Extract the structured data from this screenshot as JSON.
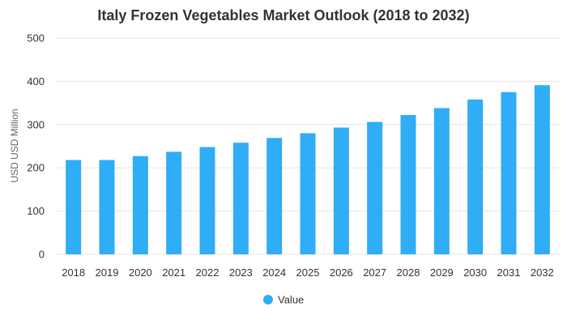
{
  "chart_data": {
    "type": "bar",
    "title": "Italy Frozen Vegetables Market Outlook (2018 to 2032)",
    "xlabel": "",
    "ylabel": "USD USD Million",
    "categories": [
      "2018",
      "2019",
      "2020",
      "2021",
      "2022",
      "2023",
      "2024",
      "2025",
      "2026",
      "2027",
      "2028",
      "2029",
      "2030",
      "2031",
      "2032"
    ],
    "series": [
      {
        "name": "Value",
        "values": [
          218,
          218,
          227,
          237,
          248,
          258,
          269,
          280,
          293,
          306,
          322,
          338,
          358,
          375,
          391
        ]
      }
    ],
    "ylim": [
      0,
      500
    ],
    "yticks": [
      "0",
      "100",
      "200",
      "300",
      "400",
      "500"
    ],
    "grid": true,
    "legend": "bottom-center",
    "colors": {
      "bar": "#2fadf6",
      "grid": "#e6e6e6",
      "text": "#333333"
    }
  }
}
